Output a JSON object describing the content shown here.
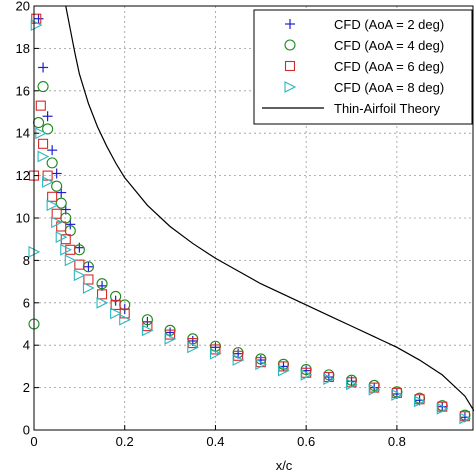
{
  "chart_data": {
    "type": "scatter",
    "title": "",
    "xlabel": "x/c",
    "ylabel": "",
    "xlim": [
      0,
      0.97
    ],
    "ylim": [
      0,
      20
    ],
    "xticks": [
      0,
      0.2,
      0.4,
      0.6,
      0.8
    ],
    "yticks": [
      0,
      2,
      4,
      6,
      8,
      10,
      12,
      14,
      16,
      18,
      20
    ],
    "xtick_labels": [
      "0",
      "0.2",
      "0.4",
      "0.6",
      "0.8"
    ],
    "ytick_labels": [
      "0",
      "2",
      "4",
      "6",
      "8",
      "10",
      "12",
      "14",
      "16",
      "18",
      "20"
    ],
    "grid": true,
    "legend_position": "top-right",
    "series": [
      {
        "name": "CFD (AoA = 2 deg)",
        "marker": "plus",
        "color": "#1f1fd0",
        "x": [
          0.01,
          0.02,
          0.03,
          0.04,
          0.05,
          0.06,
          0.07,
          0.08,
          0.1,
          0.12,
          0.15,
          0.18,
          0.2,
          0.25,
          0.3,
          0.35,
          0.4,
          0.45,
          0.5,
          0.55,
          0.6,
          0.65,
          0.7,
          0.75,
          0.8,
          0.85,
          0.9,
          0.95
        ],
        "y": [
          19.4,
          17.1,
          14.8,
          13.2,
          12.1,
          11.2,
          10.4,
          9.7,
          8.6,
          7.7,
          6.8,
          6.1,
          5.7,
          5.1,
          4.6,
          4.2,
          3.9,
          3.6,
          3.3,
          3.0,
          2.8,
          2.5,
          2.3,
          2.0,
          1.7,
          1.4,
          1.1,
          0.6
        ]
      },
      {
        "name": "CFD (AoA = 4 deg)",
        "marker": "circle",
        "color": "#1c8a1c",
        "x": [
          0.0,
          0.01,
          0.02,
          0.03,
          0.04,
          0.05,
          0.06,
          0.07,
          0.08,
          0.1,
          0.12,
          0.15,
          0.18,
          0.2,
          0.25,
          0.3,
          0.35,
          0.4,
          0.45,
          0.5,
          0.55,
          0.6,
          0.65,
          0.7,
          0.75,
          0.8,
          0.85,
          0.9,
          0.95
        ],
        "y": [
          5.0,
          14.5,
          16.2,
          14.2,
          12.6,
          11.5,
          10.7,
          10.0,
          9.4,
          8.5,
          7.7,
          6.9,
          6.3,
          5.9,
          5.2,
          4.7,
          4.3,
          3.95,
          3.65,
          3.35,
          3.1,
          2.85,
          2.6,
          2.35,
          2.1,
          1.8,
          1.5,
          1.15,
          0.7
        ]
      },
      {
        "name": "CFD (AoA = 6 deg)",
        "marker": "square",
        "color": "#d42a2a",
        "x": [
          0.0,
          0.005,
          0.015,
          0.02,
          0.03,
          0.04,
          0.05,
          0.06,
          0.07,
          0.08,
          0.1,
          0.12,
          0.15,
          0.18,
          0.2,
          0.25,
          0.3,
          0.35,
          0.4,
          0.45,
          0.5,
          0.55,
          0.6,
          0.65,
          0.7,
          0.75,
          0.8,
          0.85,
          0.9,
          0.95
        ],
        "y": [
          12.0,
          19.4,
          15.3,
          13.5,
          12.0,
          11.0,
          10.2,
          9.6,
          9.0,
          8.5,
          7.8,
          7.1,
          6.4,
          5.9,
          5.5,
          4.9,
          4.5,
          4.1,
          3.8,
          3.5,
          3.2,
          3.0,
          2.7,
          2.5,
          2.25,
          2.0,
          1.75,
          1.45,
          1.1,
          0.65
        ]
      },
      {
        "name": "CFD (AoA = 8 deg)",
        "marker": "triangle-right",
        "color": "#2ab8c0",
        "x": [
          0.0,
          0.005,
          0.015,
          0.02,
          0.03,
          0.04,
          0.05,
          0.06,
          0.07,
          0.08,
          0.1,
          0.12,
          0.15,
          0.18,
          0.2,
          0.25,
          0.3,
          0.35,
          0.4,
          0.45,
          0.5,
          0.55,
          0.6,
          0.65,
          0.7,
          0.75,
          0.8,
          0.85,
          0.9,
          0.95
        ],
        "y": [
          8.4,
          19.1,
          14.0,
          12.9,
          11.7,
          10.6,
          9.8,
          9.1,
          8.5,
          8.0,
          7.3,
          6.7,
          6.0,
          5.5,
          5.2,
          4.7,
          4.3,
          3.9,
          3.6,
          3.3,
          3.1,
          2.8,
          2.6,
          2.4,
          2.15,
          1.9,
          1.65,
          1.35,
          1.0,
          0.55
        ]
      },
      {
        "name": "Thin-Airfoil Theory",
        "marker": "line",
        "color": "#000000",
        "x": [
          0.07,
          0.08,
          0.09,
          0.1,
          0.12,
          0.14,
          0.16,
          0.18,
          0.2,
          0.25,
          0.3,
          0.35,
          0.4,
          0.45,
          0.5,
          0.55,
          0.6,
          0.65,
          0.7,
          0.75,
          0.8,
          0.85,
          0.9,
          0.95,
          0.97
        ],
        "y": [
          20.0,
          18.9,
          17.8,
          16.8,
          15.4,
          14.3,
          13.4,
          12.6,
          11.9,
          10.6,
          9.6,
          8.8,
          8.1,
          7.5,
          6.9,
          6.4,
          5.9,
          5.4,
          4.9,
          4.4,
          3.9,
          3.3,
          2.6,
          1.6,
          0.9
        ]
      }
    ]
  }
}
